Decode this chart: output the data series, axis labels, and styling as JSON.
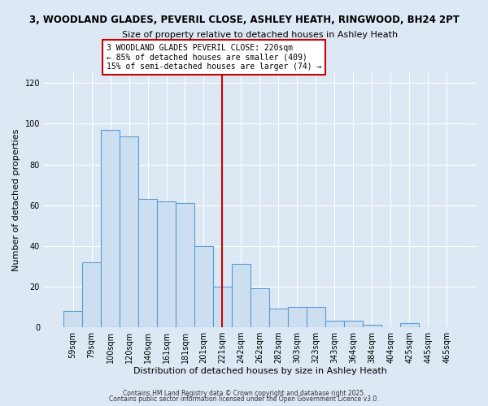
{
  "title_line1": "3, WOODLAND GLADES, PEVERIL CLOSE, ASHLEY HEATH, RINGWOOD, BH24 2PT",
  "title_line2": "Size of property relative to detached houses in Ashley Heath",
  "xlabel": "Distribution of detached houses by size in Ashley Heath",
  "ylabel": "Number of detached properties",
  "categories": [
    "59sqm",
    "79sqm",
    "100sqm",
    "120sqm",
    "140sqm",
    "161sqm",
    "181sqm",
    "201sqm",
    "221sqm",
    "242sqm",
    "262sqm",
    "282sqm",
    "303sqm",
    "323sqm",
    "343sqm",
    "364sqm",
    "384sqm",
    "404sqm",
    "425sqm",
    "445sqm",
    "465sqm"
  ],
  "values": [
    8,
    32,
    97,
    94,
    63,
    62,
    61,
    40,
    20,
    31,
    19,
    9,
    10,
    10,
    3,
    3,
    1,
    0,
    2,
    0,
    0
  ],
  "bar_color": "#ccdff0",
  "bar_edge_color": "#5b9bd5",
  "red_line_index": 8,
  "ylim": [
    0,
    125
  ],
  "yticks": [
    0,
    20,
    40,
    60,
    80,
    100,
    120
  ],
  "annotation_line1": "3 WOODLAND GLADES PEVERIL CLOSE: 220sqm",
  "annotation_line2": "← 85% of detached houses are smaller (409)",
  "annotation_line3": "15% of semi-detached houses are larger (74) →",
  "annotation_box_color": "#ffffff",
  "annotation_box_edge_color": "#cc0000",
  "background_color": "#dce9f5",
  "plot_bg_color": "#dce9f5",
  "grid_color": "#ffffff",
  "footnote1": "Contains HM Land Registry data © Crown copyright and database right 2025.",
  "footnote2": "Contains public sector information licensed under the Open Government Licence v3.0."
}
